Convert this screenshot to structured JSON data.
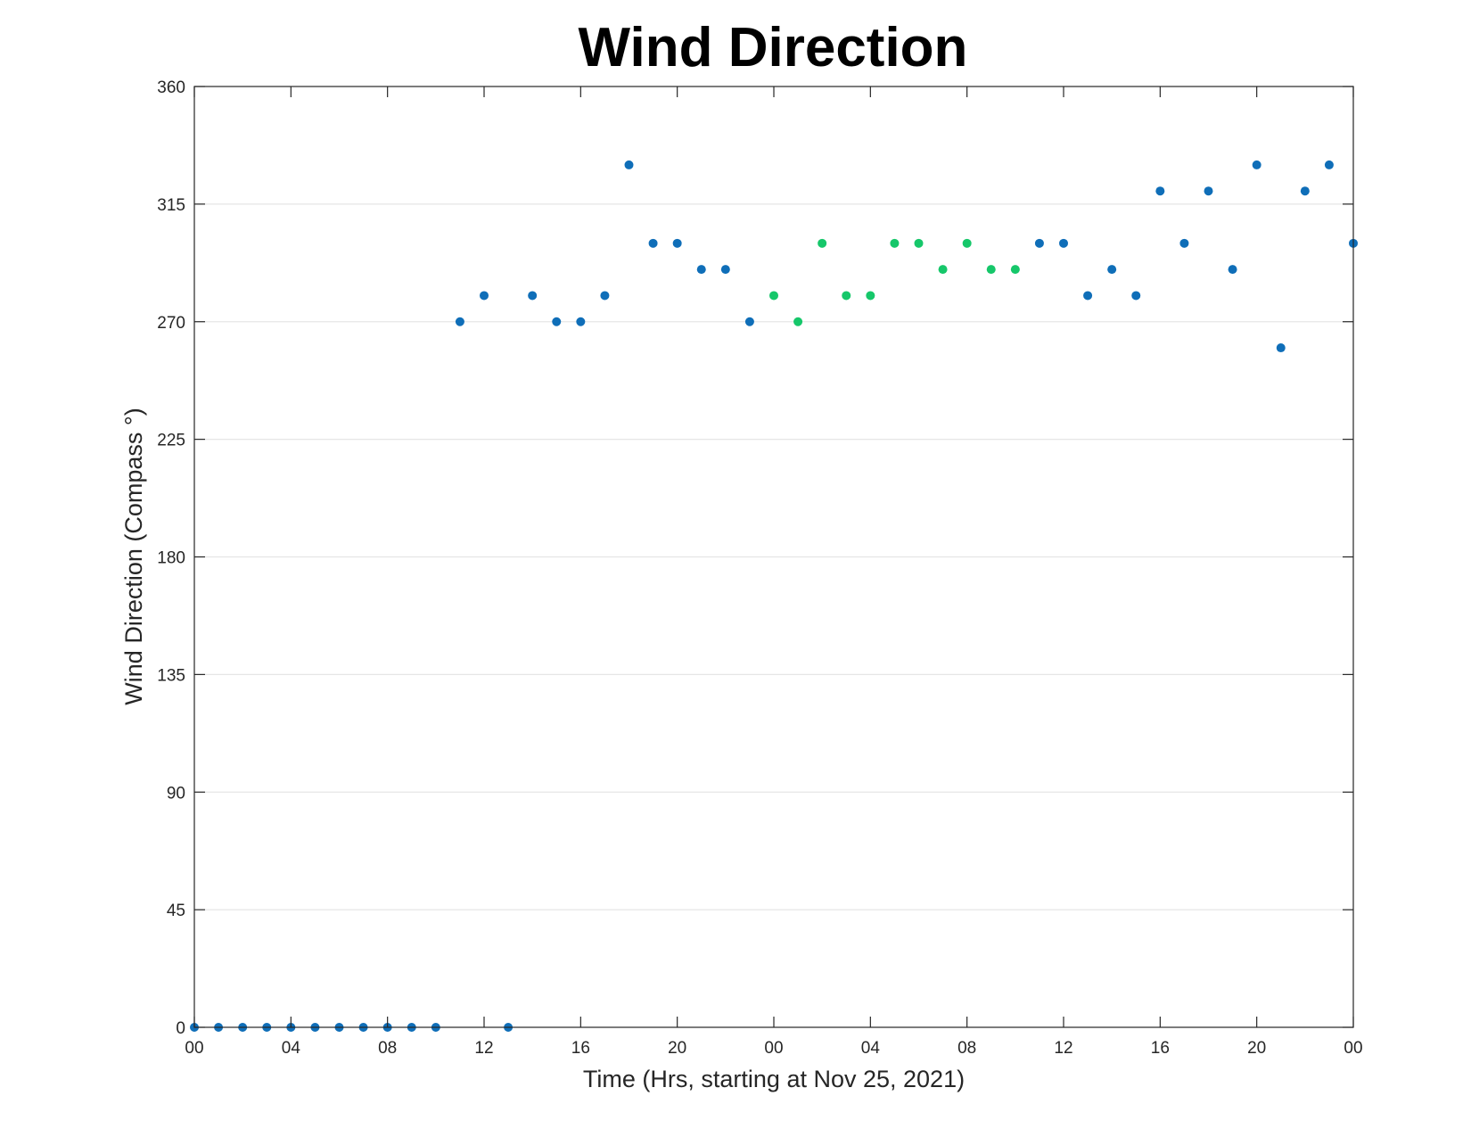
{
  "chart_data": {
    "type": "scatter",
    "title": "Wind Direction",
    "xlabel": "Time (Hrs, starting at Nov 25, 2021)",
    "ylabel": "Wind Direction (Compass °)",
    "x_tick_labels": [
      "00",
      "04",
      "08",
      "12",
      "16",
      "20",
      "00",
      "04",
      "08",
      "12",
      "16",
      "20",
      "00"
    ],
    "x_tick_hours": [
      0,
      4,
      8,
      12,
      16,
      20,
      24,
      28,
      32,
      36,
      40,
      44,
      48
    ],
    "xlim": [
      0,
      48
    ],
    "ylim": [
      0,
      360
    ],
    "y_ticks": [
      0,
      45,
      90,
      135,
      180,
      225,
      270,
      315,
      360
    ],
    "grid": "horizontal",
    "colors": {
      "blue": "#0f6eb8",
      "green": "#16c76a"
    },
    "series": [
      {
        "color": "blue",
        "points": [
          {
            "x": 0,
            "y": 0
          },
          {
            "x": 1,
            "y": 0
          },
          {
            "x": 2,
            "y": 0
          },
          {
            "x": 3,
            "y": 0
          },
          {
            "x": 4,
            "y": 0
          },
          {
            "x": 5,
            "y": 0
          },
          {
            "x": 6,
            "y": 0
          },
          {
            "x": 7,
            "y": 0
          },
          {
            "x": 8,
            "y": 0
          },
          {
            "x": 9,
            "y": 0
          },
          {
            "x": 10,
            "y": 0
          },
          {
            "x": 11,
            "y": 270
          },
          {
            "x": 12,
            "y": 280
          },
          {
            "x": 13,
            "y": 0
          },
          {
            "x": 14,
            "y": 280
          },
          {
            "x": 15,
            "y": 270
          },
          {
            "x": 16,
            "y": 270
          },
          {
            "x": 17,
            "y": 280
          },
          {
            "x": 18,
            "y": 330
          },
          {
            "x": 19,
            "y": 300
          },
          {
            "x": 20,
            "y": 300
          },
          {
            "x": 21,
            "y": 290
          },
          {
            "x": 22,
            "y": 290
          },
          {
            "x": 23,
            "y": 270
          },
          {
            "x": 35,
            "y": 300
          },
          {
            "x": 36,
            "y": 300
          },
          {
            "x": 37,
            "y": 280
          },
          {
            "x": 38,
            "y": 290
          },
          {
            "x": 39,
            "y": 280
          },
          {
            "x": 40,
            "y": 320
          },
          {
            "x": 41,
            "y": 300
          },
          {
            "x": 42,
            "y": 320
          },
          {
            "x": 43,
            "y": 290
          },
          {
            "x": 44,
            "y": 330
          },
          {
            "x": 45,
            "y": 260
          },
          {
            "x": 46,
            "y": 320
          },
          {
            "x": 47,
            "y": 330
          },
          {
            "x": 48,
            "y": 300
          }
        ]
      },
      {
        "color": "green",
        "points": [
          {
            "x": 24,
            "y": 280
          },
          {
            "x": 25,
            "y": 270
          },
          {
            "x": 26,
            "y": 300
          },
          {
            "x": 27,
            "y": 280
          },
          {
            "x": 28,
            "y": 280
          },
          {
            "x": 29,
            "y": 300
          },
          {
            "x": 30,
            "y": 300
          },
          {
            "x": 31,
            "y": 290
          },
          {
            "x": 32,
            "y": 300
          },
          {
            "x": 33,
            "y": 290
          },
          {
            "x": 34,
            "y": 290
          }
        ]
      }
    ]
  }
}
